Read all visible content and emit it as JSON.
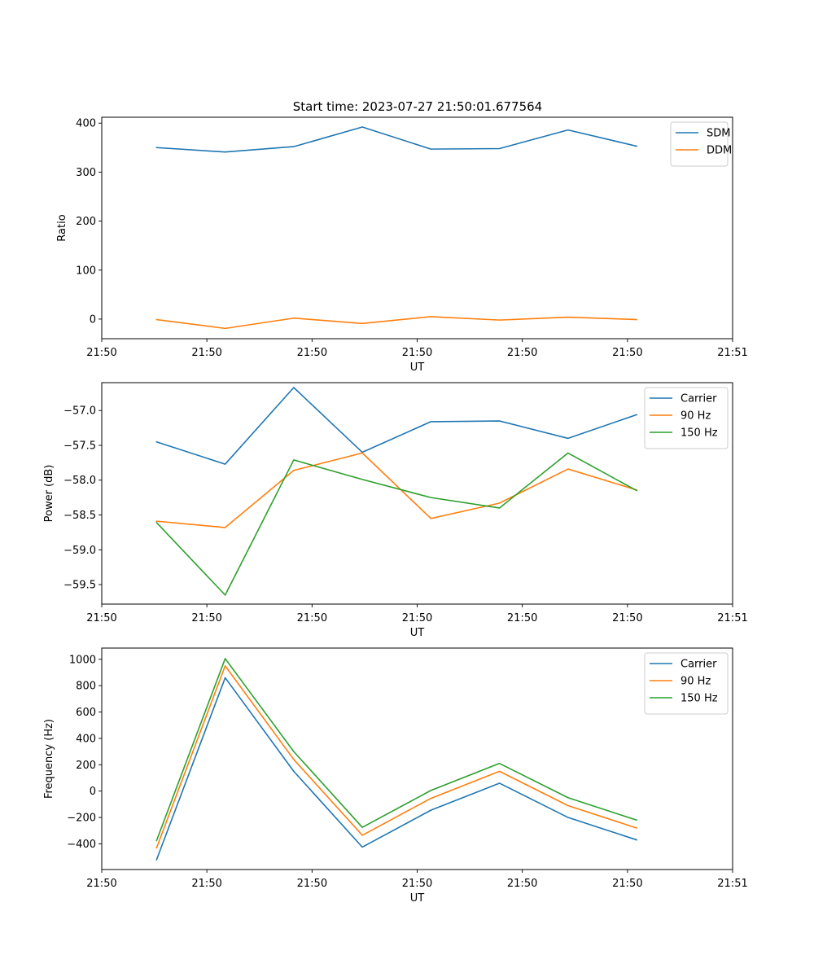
{
  "figure_title": "Start time: 2023-07-27 21:50:01.677564",
  "chart_data": [
    {
      "type": "line",
      "x": [
        1,
        2,
        3,
        4,
        5,
        6,
        7,
        8
      ],
      "xlim": [
        0.2,
        9.4
      ],
      "x_ticks": [
        {
          "pos": 0.2,
          "label": "21:50"
        },
        {
          "pos": 1.733,
          "label": "21:50"
        },
        {
          "pos": 3.267,
          "label": "21:50"
        },
        {
          "pos": 4.8,
          "label": "21:50"
        },
        {
          "pos": 6.333,
          "label": "21:50"
        },
        {
          "pos": 7.867,
          "label": "21:50"
        },
        {
          "pos": 9.4,
          "label": "21:51"
        }
      ],
      "xlabel": "UT",
      "ylabel": "Ratio",
      "ylim": [
        -40,
        412
      ],
      "y_ticks": [
        {
          "pos": 0,
          "label": "0"
        },
        {
          "pos": 100,
          "label": "100"
        },
        {
          "pos": 200,
          "label": "200"
        },
        {
          "pos": 300,
          "label": "300"
        },
        {
          "pos": 400,
          "label": "400"
        }
      ],
      "legend": "upper right",
      "series": [
        {
          "name": "SDM",
          "color": "#1f77b4",
          "values": [
            350,
            341,
            352,
            392,
            347,
            348,
            386,
            353
          ]
        },
        {
          "name": "DDM",
          "color": "#ff7f0e",
          "values": [
            -1,
            -19,
            2,
            -9,
            5,
            -2,
            4,
            -1
          ]
        }
      ]
    },
    {
      "type": "line",
      "x": [
        1,
        2,
        3,
        4,
        5,
        6,
        7,
        8
      ],
      "xlim": [
        0.2,
        9.4
      ],
      "x_ticks": [
        {
          "pos": 0.2,
          "label": "21:50"
        },
        {
          "pos": 1.733,
          "label": "21:50"
        },
        {
          "pos": 3.267,
          "label": "21:50"
        },
        {
          "pos": 4.8,
          "label": "21:50"
        },
        {
          "pos": 6.333,
          "label": "21:50"
        },
        {
          "pos": 7.867,
          "label": "21:50"
        },
        {
          "pos": 9.4,
          "label": "21:51"
        }
      ],
      "xlabel": "UT",
      "ylabel": "Power (dB)",
      "ylim": [
        -59.78,
        -56.6
      ],
      "y_ticks": [
        {
          "pos": -59.5,
          "label": "−59.5"
        },
        {
          "pos": -59.0,
          "label": "−59.0"
        },
        {
          "pos": -58.5,
          "label": "−58.5"
        },
        {
          "pos": -58.0,
          "label": "−58.0"
        },
        {
          "pos": -57.5,
          "label": "−57.5"
        },
        {
          "pos": -57.0,
          "label": "−57.0"
        }
      ],
      "legend": "upper right",
      "series": [
        {
          "name": "Carrier",
          "color": "#1f77b4",
          "values": [
            -57.45,
            -57.77,
            -56.67,
            -57.6,
            -57.16,
            -57.15,
            -57.4,
            -57.06
          ]
        },
        {
          "name": "90 Hz",
          "color": "#ff7f0e",
          "values": [
            -58.59,
            -58.68,
            -57.86,
            -57.61,
            -58.55,
            -58.33,
            -57.84,
            -58.14
          ]
        },
        {
          "name": "150 Hz",
          "color": "#2ca02c",
          "values": [
            -58.61,
            -59.65,
            -57.71,
            -57.99,
            -58.25,
            -58.4,
            -57.61,
            -58.15
          ]
        }
      ]
    },
    {
      "type": "line",
      "x": [
        1,
        2,
        3,
        4,
        5,
        6,
        7,
        8
      ],
      "xlim": [
        0.2,
        9.4
      ],
      "x_ticks": [
        {
          "pos": 0.2,
          "label": "21:50"
        },
        {
          "pos": 1.733,
          "label": "21:50"
        },
        {
          "pos": 3.267,
          "label": "21:50"
        },
        {
          "pos": 4.8,
          "label": "21:50"
        },
        {
          "pos": 6.333,
          "label": "21:50"
        },
        {
          "pos": 7.867,
          "label": "21:50"
        },
        {
          "pos": 9.4,
          "label": "21:51"
        }
      ],
      "xlabel": "UT",
      "ylabel": "Frequency (Hz)",
      "ylim": [
        -595,
        1085
      ],
      "y_ticks": [
        {
          "pos": -400,
          "label": "−400"
        },
        {
          "pos": -200,
          "label": "−200"
        },
        {
          "pos": 0,
          "label": "0"
        },
        {
          "pos": 200,
          "label": "200"
        },
        {
          "pos": 400,
          "label": "400"
        },
        {
          "pos": 600,
          "label": "600"
        },
        {
          "pos": 800,
          "label": "800"
        },
        {
          "pos": 1000,
          "label": "1000"
        }
      ],
      "legend": "upper right",
      "series": [
        {
          "name": "Carrier",
          "color": "#1f77b4",
          "values": [
            -520,
            860,
            150,
            -425,
            -145,
            60,
            -200,
            -370
          ]
        },
        {
          "name": "90 Hz",
          "color": "#ff7f0e",
          "values": [
            -430,
            950,
            240,
            -335,
            -55,
            150,
            -110,
            -280
          ]
        },
        {
          "name": "150 Hz",
          "color": "#2ca02c",
          "values": [
            -375,
            1005,
            300,
            -275,
            5,
            210,
            -50,
            -220
          ]
        }
      ]
    }
  ]
}
